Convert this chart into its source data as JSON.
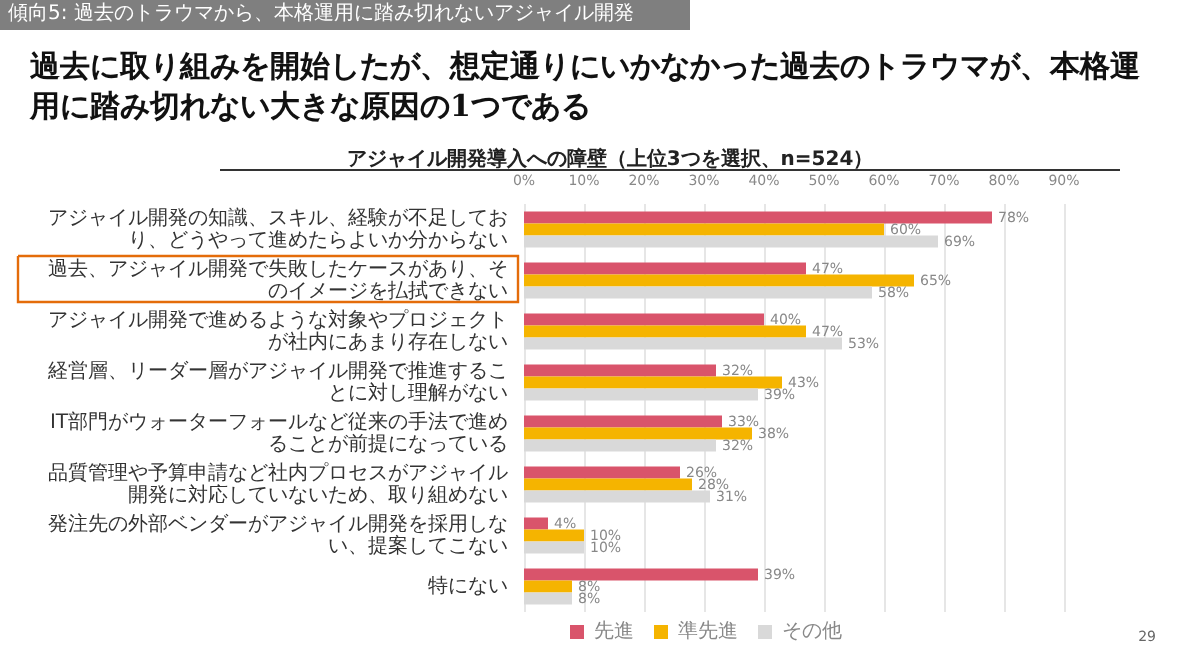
{
  "chart_data": {
    "type": "bar",
    "orientation": "horizontal",
    "title": "アジャイル開発導入への障壁（上位3つを選択、n=524）",
    "subtitle": "過去に取り組みを開始したが、想定通りにいかなかった過去のトラウマが、本格運用に踏み切れない大きな原因の1つである",
    "annotations": [
      "傾向5: 過去のトラウマから、本格運用に踏み切れないアジャイル開発",
      "29"
    ],
    "categories": [
      "アジャイル開発の知識、スキル、経験が不足しており、どうやって進めたらよいか分からない",
      "過去、アジャイル開発で失敗したケースがあり、そのイメージを払拭できない",
      "アジャイル開発で進めるような対象やプロジェクトが社内にあまり存在しない",
      "経営層、リーダー層がアジャイル開発で推進することに対し理解がない",
      "IT部門がウォーターフォールなど従来の手法で進めることが前提になっている",
      "品質管理や予算申請など社内プロセスがアジャイル開発に対応していないため、取り組めない",
      "発注先の外部ベンダーがアジャイル開発を採用しない、提案してこない",
      "特にない"
    ],
    "series": [
      {
        "name": "先進",
        "color": "#d9546b",
        "values": [
          78,
          47,
          40,
          32,
          33,
          26,
          4,
          39
        ],
        "value_labels": [
          "78%",
          "47%",
          "40%",
          "32%",
          "33%",
          "26%",
          "4%",
          "39%"
        ]
      },
      {
        "name": "準先進",
        "color": "#f5b400",
        "values": [
          60,
          65,
          47,
          43,
          38,
          28,
          10,
          8
        ],
        "value_labels": [
          "60%",
          "65%",
          "47%",
          "43%",
          "38%",
          "28%",
          "10%",
          "8%"
        ]
      },
      {
        "name": "その他",
        "color": "#d9d9d9",
        "values": [
          69,
          58,
          53,
          39,
          32,
          31,
          10,
          8
        ],
        "value_labels": [
          "69%",
          "58%",
          "53%",
          "39%",
          "32%",
          "31%",
          "10%",
          "8%"
        ]
      }
    ],
    "xlim": [
      0,
      90
    ],
    "xticks": [
      {
        "value": 0,
        "label": "0%"
      },
      {
        "value": 10,
        "label": "10%"
      },
      {
        "value": 20,
        "label": "20%"
      },
      {
        "value": 30,
        "label": "30%"
      },
      {
        "value": 40,
        "label": "40%"
      },
      {
        "value": 50,
        "label": "50%"
      },
      {
        "value": 60,
        "label": "60%"
      },
      {
        "value": 70,
        "label": "70%"
      },
      {
        "value": 80,
        "label": "80%"
      },
      {
        "value": 90,
        "label": "90%"
      }
    ],
    "grid": "x",
    "legend": "bottom"
  }
}
